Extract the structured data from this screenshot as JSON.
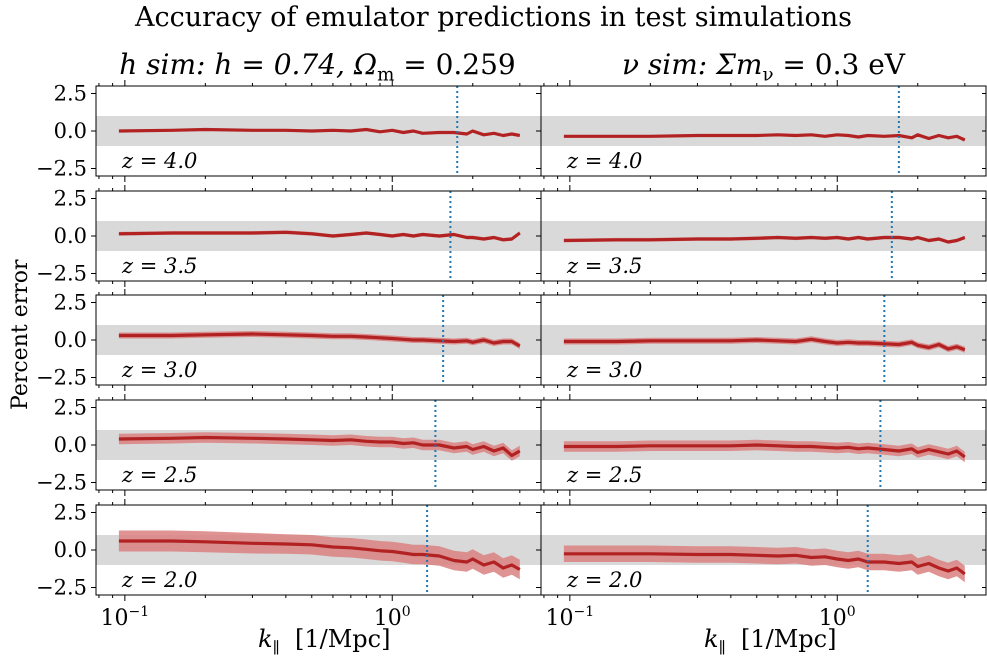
{
  "title": "Accuracy of emulator predictions in test simulations",
  "ylabel": "Percent error",
  "xlabel_symbol": "k",
  "xlabel_sub": "∥",
  "xlabel_units": "[1/Mpc]",
  "columns": [
    {
      "title_italic": "h sim:",
      "title_math": "h = 0.74,  Ω",
      "title_sub": "m",
      "title_tail": " = 0.259"
    },
    {
      "title_italic": "ν sim:",
      "title_math": "Σm",
      "title_sub": "ν",
      "title_tail": " = 0.3 eV"
    }
  ],
  "colors": {
    "line": "#b22222",
    "band": "#d98080",
    "gray": "#d9d9d9",
    "vline": "#1f77b4"
  },
  "chart_data": {
    "type": "line",
    "xscale": "log",
    "xlim": [
      0.078,
      3.6
    ],
    "ylim": [
      -3.0,
      3.0
    ],
    "yticks": [
      2.5,
      0.0,
      -2.5
    ],
    "ytick_labels": [
      "2.5",
      "0.0",
      "−2.5"
    ],
    "xtick_labels": [
      {
        "base": "10",
        "exp": "−1"
      },
      {
        "base": "10",
        "exp": "0"
      }
    ],
    "gray_band": [
      -1.0,
      1.0
    ],
    "panels": [
      {
        "z_label": "z = 4.0",
        "column": 0,
        "kmax": 1.75,
        "x": [
          0.095,
          0.15,
          0.2,
          0.3,
          0.4,
          0.5,
          0.6,
          0.7,
          0.8,
          0.9,
          1.0,
          1.1,
          1.2,
          1.3,
          1.5,
          1.7,
          1.9,
          2.0,
          2.2,
          2.4,
          2.6,
          2.8,
          3.0
        ],
        "y": [
          0.0,
          0.05,
          0.1,
          0.05,
          0.05,
          0.0,
          0.05,
          0.0,
          0.1,
          -0.05,
          0.05,
          -0.1,
          0.0,
          -0.15,
          -0.1,
          -0.1,
          -0.2,
          0.0,
          -0.25,
          -0.15,
          -0.3,
          -0.2,
          -0.3
        ],
        "err": [
          0.05,
          0.05,
          0.05,
          0.05,
          0.05,
          0.05,
          0.05,
          0.05,
          0.05,
          0.05,
          0.05,
          0.05,
          0.05,
          0.05,
          0.05,
          0.05,
          0.05,
          0.05,
          0.05,
          0.05,
          0.05,
          0.05,
          0.05
        ]
      },
      {
        "z_label": "z = 4.0",
        "column": 1,
        "kmax": 1.7,
        "x": [
          0.095,
          0.15,
          0.2,
          0.3,
          0.4,
          0.5,
          0.6,
          0.7,
          0.8,
          0.9,
          1.0,
          1.1,
          1.2,
          1.3,
          1.5,
          1.7,
          1.9,
          2.0,
          2.2,
          2.4,
          2.6,
          2.8,
          3.0
        ],
        "y": [
          -0.35,
          -0.35,
          -0.35,
          -0.3,
          -0.3,
          -0.3,
          -0.25,
          -0.3,
          -0.25,
          -0.35,
          -0.25,
          -0.3,
          -0.4,
          -0.3,
          -0.35,
          -0.3,
          -0.45,
          -0.25,
          -0.5,
          -0.3,
          -0.45,
          -0.35,
          -0.6
        ],
        "err": [
          0.05,
          0.05,
          0.05,
          0.05,
          0.05,
          0.05,
          0.05,
          0.05,
          0.05,
          0.05,
          0.05,
          0.05,
          0.05,
          0.05,
          0.05,
          0.05,
          0.05,
          0.05,
          0.05,
          0.05,
          0.05,
          0.05,
          0.05
        ]
      },
      {
        "z_label": "z = 3.5",
        "column": 0,
        "kmax": 1.65,
        "x": [
          0.095,
          0.15,
          0.2,
          0.3,
          0.4,
          0.5,
          0.6,
          0.7,
          0.8,
          0.9,
          1.0,
          1.1,
          1.2,
          1.3,
          1.5,
          1.7,
          1.9,
          2.0,
          2.2,
          2.4,
          2.6,
          2.8,
          3.0
        ],
        "y": [
          0.15,
          0.2,
          0.2,
          0.2,
          0.25,
          0.15,
          0.0,
          0.1,
          0.2,
          0.1,
          0.0,
          0.1,
          0.0,
          0.1,
          0.0,
          0.1,
          -0.1,
          -0.1,
          -0.2,
          -0.1,
          -0.25,
          -0.2,
          0.2
        ],
        "err": [
          0.12,
          0.12,
          0.12,
          0.12,
          0.12,
          0.12,
          0.12,
          0.12,
          0.12,
          0.12,
          0.12,
          0.12,
          0.12,
          0.12,
          0.12,
          0.12,
          0.12,
          0.12,
          0.12,
          0.12,
          0.12,
          0.12,
          0.12
        ]
      },
      {
        "z_label": "z = 3.5",
        "column": 1,
        "kmax": 1.6,
        "x": [
          0.095,
          0.15,
          0.2,
          0.3,
          0.4,
          0.5,
          0.6,
          0.7,
          0.8,
          0.9,
          1.0,
          1.1,
          1.2,
          1.3,
          1.5,
          1.7,
          1.9,
          2.0,
          2.2,
          2.4,
          2.6,
          2.8,
          3.0
        ],
        "y": [
          -0.3,
          -0.25,
          -0.25,
          -0.2,
          -0.2,
          -0.15,
          -0.1,
          -0.15,
          -0.1,
          -0.15,
          -0.1,
          -0.2,
          -0.1,
          -0.2,
          -0.1,
          -0.1,
          -0.2,
          -0.1,
          -0.3,
          -0.2,
          -0.4,
          -0.3,
          -0.1
        ],
        "err": [
          0.12,
          0.12,
          0.12,
          0.12,
          0.12,
          0.12,
          0.12,
          0.12,
          0.12,
          0.12,
          0.12,
          0.12,
          0.12,
          0.12,
          0.12,
          0.12,
          0.12,
          0.12,
          0.12,
          0.12,
          0.12,
          0.12,
          0.12
        ]
      },
      {
        "z_label": "z = 3.0",
        "column": 0,
        "kmax": 1.55,
        "x": [
          0.095,
          0.15,
          0.2,
          0.3,
          0.4,
          0.5,
          0.6,
          0.7,
          0.8,
          0.9,
          1.0,
          1.1,
          1.2,
          1.3,
          1.5,
          1.7,
          1.9,
          2.0,
          2.2,
          2.4,
          2.6,
          2.8,
          3.0
        ],
        "y": [
          0.3,
          0.3,
          0.35,
          0.4,
          0.35,
          0.3,
          0.25,
          0.25,
          0.2,
          0.15,
          0.1,
          0.05,
          0.0,
          0.0,
          -0.05,
          -0.1,
          -0.05,
          -0.15,
          0.0,
          -0.2,
          -0.1,
          -0.1,
          -0.4
        ],
        "err": [
          0.2,
          0.2,
          0.2,
          0.2,
          0.2,
          0.2,
          0.2,
          0.2,
          0.2,
          0.2,
          0.2,
          0.2,
          0.2,
          0.2,
          0.2,
          0.2,
          0.2,
          0.2,
          0.2,
          0.2,
          0.2,
          0.2,
          0.2
        ]
      },
      {
        "z_label": "z = 3.0",
        "column": 1,
        "kmax": 1.5,
        "x": [
          0.095,
          0.15,
          0.2,
          0.3,
          0.4,
          0.5,
          0.6,
          0.7,
          0.8,
          0.9,
          1.0,
          1.1,
          1.2,
          1.3,
          1.5,
          1.7,
          1.9,
          2.0,
          2.2,
          2.4,
          2.6,
          2.8,
          3.0
        ],
        "y": [
          -0.1,
          -0.1,
          -0.05,
          -0.05,
          -0.05,
          0.0,
          -0.05,
          -0.1,
          0.05,
          -0.1,
          -0.2,
          -0.15,
          -0.2,
          -0.2,
          -0.25,
          -0.3,
          -0.15,
          -0.35,
          -0.5,
          -0.3,
          -0.6,
          -0.45,
          -0.65
        ],
        "err": [
          0.2,
          0.2,
          0.2,
          0.2,
          0.2,
          0.2,
          0.2,
          0.2,
          0.2,
          0.2,
          0.2,
          0.2,
          0.2,
          0.2,
          0.2,
          0.2,
          0.2,
          0.2,
          0.2,
          0.2,
          0.2,
          0.2,
          0.2
        ]
      },
      {
        "z_label": "z = 2.5",
        "column": 0,
        "kmax": 1.45,
        "x": [
          0.095,
          0.15,
          0.2,
          0.3,
          0.4,
          0.5,
          0.6,
          0.7,
          0.8,
          0.9,
          1.0,
          1.1,
          1.2,
          1.3,
          1.5,
          1.7,
          1.9,
          2.0,
          2.2,
          2.4,
          2.6,
          2.8,
          3.0
        ],
        "y": [
          0.4,
          0.45,
          0.5,
          0.45,
          0.4,
          0.35,
          0.3,
          0.35,
          0.25,
          0.2,
          0.2,
          0.1,
          0.15,
          0.0,
          0.0,
          -0.2,
          -0.1,
          -0.3,
          -0.1,
          -0.4,
          -0.2,
          -0.7,
          -0.4
        ],
        "err": [
          0.35,
          0.35,
          0.35,
          0.35,
          0.35,
          0.35,
          0.35,
          0.35,
          0.35,
          0.35,
          0.35,
          0.35,
          0.35,
          0.35,
          0.35,
          0.35,
          0.35,
          0.35,
          0.35,
          0.35,
          0.35,
          0.35,
          0.35
        ]
      },
      {
        "z_label": "z = 2.5",
        "column": 1,
        "kmax": 1.45,
        "x": [
          0.095,
          0.15,
          0.2,
          0.3,
          0.4,
          0.5,
          0.6,
          0.7,
          0.8,
          0.9,
          1.0,
          1.1,
          1.2,
          1.3,
          1.5,
          1.7,
          1.9,
          2.0,
          2.2,
          2.4,
          2.6,
          2.8,
          3.0
        ],
        "y": [
          -0.1,
          -0.1,
          -0.05,
          -0.05,
          -0.05,
          0.0,
          -0.05,
          -0.1,
          -0.1,
          -0.15,
          -0.2,
          -0.15,
          -0.25,
          -0.2,
          -0.3,
          -0.4,
          -0.25,
          -0.5,
          -0.3,
          -0.45,
          -0.6,
          -0.4,
          -0.8
        ],
        "err": [
          0.35,
          0.35,
          0.35,
          0.35,
          0.35,
          0.35,
          0.35,
          0.35,
          0.35,
          0.35,
          0.35,
          0.35,
          0.35,
          0.35,
          0.35,
          0.35,
          0.35,
          0.35,
          0.35,
          0.35,
          0.35,
          0.35,
          0.35
        ]
      },
      {
        "z_label": "z = 2.0",
        "column": 0,
        "kmax": 1.35,
        "x": [
          0.095,
          0.15,
          0.2,
          0.3,
          0.4,
          0.5,
          0.6,
          0.7,
          0.8,
          0.9,
          1.0,
          1.1,
          1.2,
          1.3,
          1.5,
          1.7,
          1.9,
          2.0,
          2.2,
          2.4,
          2.6,
          2.8,
          3.0
        ],
        "y": [
          0.6,
          0.6,
          0.55,
          0.45,
          0.4,
          0.35,
          0.2,
          0.15,
          0.05,
          -0.05,
          -0.1,
          -0.2,
          -0.3,
          -0.3,
          -0.4,
          -0.7,
          -0.8,
          -0.6,
          -1.0,
          -0.8,
          -1.2,
          -1.0,
          -1.3
        ],
        "err": [
          0.7,
          0.7,
          0.7,
          0.68,
          0.65,
          0.65,
          0.65,
          0.65,
          0.65,
          0.65,
          0.65,
          0.65,
          0.65,
          0.65,
          0.65,
          0.65,
          0.65,
          0.65,
          0.65,
          0.65,
          0.65,
          0.65,
          0.65
        ]
      },
      {
        "z_label": "z = 2.0",
        "column": 1,
        "kmax": 1.3,
        "x": [
          0.095,
          0.15,
          0.2,
          0.3,
          0.4,
          0.5,
          0.6,
          0.7,
          0.8,
          0.9,
          1.0,
          1.1,
          1.2,
          1.3,
          1.5,
          1.7,
          1.9,
          2.0,
          2.2,
          2.4,
          2.6,
          2.8,
          3.0
        ],
        "y": [
          -0.25,
          -0.25,
          -0.25,
          -0.3,
          -0.3,
          -0.35,
          -0.4,
          -0.35,
          -0.5,
          -0.45,
          -0.6,
          -0.7,
          -0.6,
          -0.8,
          -0.8,
          -0.9,
          -0.8,
          -1.1,
          -0.9,
          -1.2,
          -1.4,
          -1.2,
          -1.6
        ],
        "err": [
          0.55,
          0.55,
          0.55,
          0.55,
          0.55,
          0.55,
          0.55,
          0.55,
          0.55,
          0.55,
          0.55,
          0.55,
          0.55,
          0.55,
          0.55,
          0.55,
          0.55,
          0.55,
          0.55,
          0.55,
          0.55,
          0.55,
          0.55
        ]
      }
    ]
  }
}
